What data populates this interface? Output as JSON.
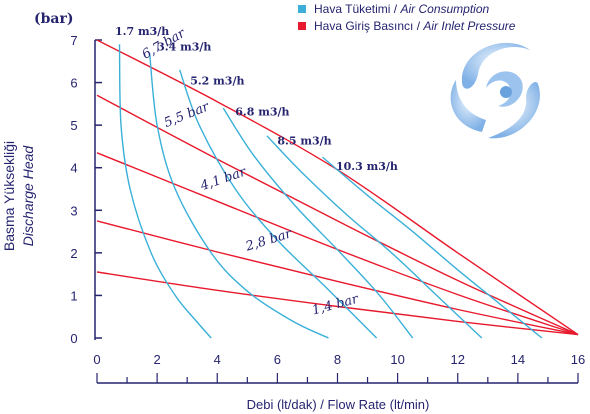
{
  "chart_data": {
    "type": "line",
    "title": "",
    "xlabel": "Debi (lt/dak) / Flow Rate (lt/min)",
    "ylabel_line1": "Basma Yüksekliği",
    "ylabel_line2": "Discharge Head",
    "yunit": "(bar)",
    "xlim": [
      0,
      16
    ],
    "ylim": [
      0,
      7
    ],
    "xticks": [
      "0",
      "2",
      "4",
      "6",
      "8",
      "10",
      "12",
      "14",
      "16"
    ],
    "yticks": [
      "0",
      "1",
      "2",
      "3",
      "4",
      "5",
      "6",
      "7"
    ],
    "grid": false,
    "legend_position": "top-right",
    "legend": [
      {
        "label": "Hava Tüketimi / ",
        "label_italic": "Air Consumption",
        "color": "#3ab0d8"
      },
      {
        "label": "Hava Giriş Basıncı / ",
        "label_italic": "Air Inlet Pressure",
        "color": "#e8192c"
      }
    ],
    "series": [
      {
        "name": "1,4 bar",
        "group": "air_inlet_pressure",
        "color": "#e8192c",
        "x": [
          0,
          4,
          8,
          12,
          16
        ],
        "y": [
          1.55,
          1.12,
          0.74,
          0.39,
          0.08
        ]
      },
      {
        "name": "2,8 bar",
        "group": "air_inlet_pressure",
        "color": "#e8192c",
        "x": [
          0,
          4,
          8,
          12,
          16
        ],
        "y": [
          2.75,
          2.02,
          1.33,
          0.67,
          0.08
        ]
      },
      {
        "name": "4,1 bar",
        "group": "air_inlet_pressure",
        "color": "#e8192c",
        "x": [
          0,
          4,
          8,
          12,
          16
        ],
        "y": [
          4.35,
          3.21,
          2.08,
          1.02,
          0.08
        ]
      },
      {
        "name": "5,5 bar",
        "group": "air_inlet_pressure",
        "color": "#e8192c",
        "x": [
          0,
          4,
          8,
          12,
          16
        ],
        "y": [
          5.7,
          4.2,
          2.75,
          1.35,
          0.08
        ]
      },
      {
        "name": "6,7 bar",
        "group": "air_inlet_pressure",
        "color": "#e8192c",
        "x": [
          0,
          4,
          8,
          12,
          16
        ],
        "y": [
          7.0,
          5.55,
          3.95,
          2.0,
          0.08
        ]
      },
      {
        "name": "1.7 m3/h",
        "group": "air_consumption",
        "color": "#3ab0d8",
        "x": [
          0.75,
          0.8,
          1.1,
          1.8,
          2.6,
          3.3,
          3.8
        ],
        "y": [
          6.9,
          5.0,
          3.5,
          2.0,
          1.0,
          0.4,
          0.0
        ]
      },
      {
        "name": "3.4 m3/h",
        "group": "air_consumption",
        "color": "#3ab0d8",
        "x": [
          1.75,
          2.0,
          2.6,
          3.8,
          5.0,
          6.5,
          7.7
        ],
        "y": [
          6.7,
          5.0,
          3.5,
          2.0,
          1.1,
          0.4,
          0.0
        ]
      },
      {
        "name": "5.2 m3/h",
        "group": "air_consumption",
        "color": "#3ab0d8",
        "x": [
          2.75,
          3.4,
          4.6,
          6.0,
          7.6,
          9.3
        ],
        "y": [
          6.3,
          5.0,
          3.5,
          2.3,
          1.2,
          0.0
        ]
      },
      {
        "name": "6.8 m3/h",
        "group": "air_consumption",
        "color": "#3ab0d8",
        "x": [
          4.2,
          5.2,
          6.6,
          8.1,
          9.4,
          10.5
        ],
        "y": [
          5.4,
          4.3,
          3.1,
          2.0,
          1.0,
          0.0
        ]
      },
      {
        "name": "8.5 m3/h",
        "group": "air_consumption",
        "color": "#3ab0d8",
        "x": [
          5.65,
          6.8,
          8.3,
          9.8,
          11.3,
          12.8
        ],
        "y": [
          4.75,
          3.9,
          2.9,
          2.0,
          1.0,
          0.0
        ]
      },
      {
        "name": "10.3 m3/h",
        "group": "air_consumption",
        "color": "#3ab0d8",
        "x": [
          7.5,
          9.0,
          10.5,
          12.0,
          13.4,
          14.8
        ],
        "y": [
          4.25,
          3.35,
          2.5,
          1.6,
          0.8,
          0.0
        ]
      }
    ],
    "annotations": {
      "pressure": [
        "6,7 bar",
        "5,5 bar",
        "4,1 bar",
        "2,8 bar",
        "1,4 bar"
      ],
      "consumption": [
        "1.7 m3/h",
        "3.4 m3/h",
        "5.2 m3/h",
        "6.8 m3/h",
        "8.5 m3/h",
        "10.3 m3/h"
      ]
    }
  },
  "logo": {
    "name": "company-logo",
    "color": "#7fb0e6"
  }
}
